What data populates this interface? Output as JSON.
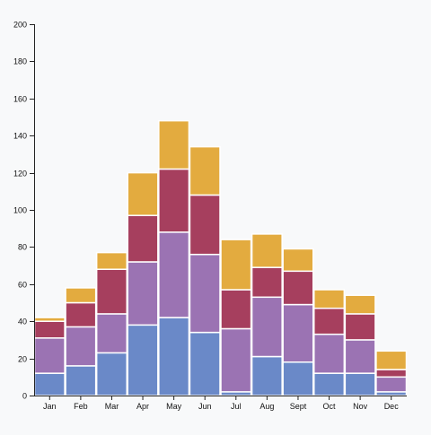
{
  "chart_data": {
    "type": "bar",
    "stacked": true,
    "categories": [
      "Jan",
      "Feb",
      "Mar",
      "Apr",
      "May",
      "Jun",
      "Jul",
      "Aug",
      "Sept",
      "Oct",
      "Nov",
      "Dec"
    ],
    "ylim": [
      0,
      200
    ],
    "yticks": [
      0,
      20,
      40,
      60,
      80,
      100,
      120,
      140,
      160,
      180,
      200
    ],
    "grid": false,
    "legend": "none",
    "title": "",
    "xlabel": "",
    "ylabel": "",
    "series": [
      {
        "color": "#6a89c8",
        "values": [
          12,
          16,
          23,
          38,
          42,
          34,
          2,
          21,
          18,
          12,
          12,
          2
        ]
      },
      {
        "color": "#9b73b3",
        "values": [
          19,
          21,
          21,
          34,
          46,
          42,
          34,
          32,
          31,
          21,
          18,
          8
        ]
      },
      {
        "color": "#a63f5e",
        "values": [
          9,
          13,
          24,
          25,
          34,
          32,
          21,
          16,
          18,
          14,
          14,
          4
        ]
      },
      {
        "color": "#e3ab3f",
        "values": [
          2,
          8,
          9,
          23,
          26,
          26,
          27,
          18,
          12,
          10,
          10,
          10
        ]
      }
    ]
  }
}
